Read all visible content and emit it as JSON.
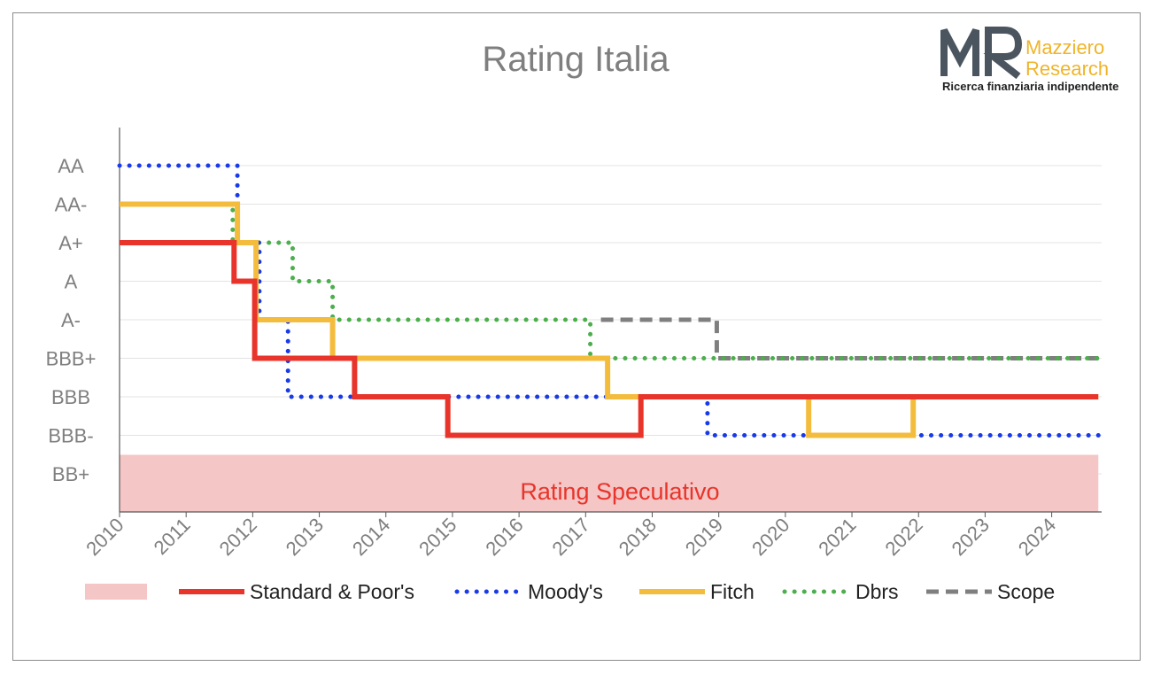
{
  "chart_data": {
    "type": "line",
    "title": "Rating Italia",
    "y_categories": [
      "BB+",
      "BBB-",
      "BBB",
      "BBB+",
      "A-",
      "A",
      "A+",
      "AA-",
      "AA"
    ],
    "x_tick_labels": [
      "2010",
      "2011",
      "2012",
      "2013",
      "2014",
      "2015",
      "2016",
      "2017",
      "2018",
      "2019",
      "2020",
      "2021",
      "2022",
      "2023",
      "2024"
    ],
    "xlim": [
      2010,
      2024.75
    ],
    "speculative_band": {
      "label": "Rating Speculativo",
      "color": "#f4c6c6",
      "label_color": "#e8342a"
    },
    "grid": true,
    "legend_position": "bottom",
    "series": [
      {
        "name": "Standard & Poor's",
        "color": "#e8342a",
        "style": "solid",
        "points": [
          [
            2010,
            "A+"
          ],
          [
            2011.72,
            "A"
          ],
          [
            2012.03,
            "BBB+"
          ],
          [
            2013.53,
            "BBB"
          ],
          [
            2014.93,
            "BBB-"
          ],
          [
            2017.83,
            "BBB"
          ],
          [
            2024.7,
            "BBB"
          ]
        ]
      },
      {
        "name": "Moody's",
        "color": "#1a3ae8",
        "style": "dotted",
        "points": [
          [
            2010,
            "AA"
          ],
          [
            2011.77,
            "A+"
          ],
          [
            2012.1,
            "A-"
          ],
          [
            2012.53,
            "BBB"
          ],
          [
            2018.83,
            "BBB-"
          ],
          [
            2024.7,
            "BBB-"
          ]
        ]
      },
      {
        "name": "Fitch",
        "color": "#f4bc3c",
        "style": "solid",
        "points": [
          [
            2010,
            "AA-"
          ],
          [
            2011.77,
            "A+"
          ],
          [
            2012.05,
            "A-"
          ],
          [
            2013.2,
            "BBB+"
          ],
          [
            2017.33,
            "BBB"
          ],
          [
            2020.35,
            "BBB-"
          ],
          [
            2021.92,
            "BBB"
          ],
          [
            2024.7,
            "BBB"
          ]
        ]
      },
      {
        "name": "Dbrs",
        "color": "#4cae4c",
        "style": "dotted",
        "points": [
          [
            2011.05,
            "AA-"
          ],
          [
            2011.7,
            "A+"
          ],
          [
            2012.6,
            "A"
          ],
          [
            2013.2,
            "A-"
          ],
          [
            2017.07,
            "BBB+"
          ],
          [
            2024.7,
            "BBB+"
          ]
        ]
      },
      {
        "name": "Scope",
        "color": "#7f7f7f",
        "style": "dashed",
        "points": [
          [
            2017.23,
            "A-"
          ],
          [
            2018.97,
            "BBB+"
          ],
          [
            2024.7,
            "BBB+"
          ]
        ]
      }
    ]
  },
  "logo": {
    "mark": "MR",
    "name_line1": "Mazziero",
    "name_line2": "Research",
    "tagline": "Ricerca finanziaria indipendente"
  },
  "colors": {
    "axis": "#595959",
    "grid": "#e3e3e3",
    "title": "#7f7f7f",
    "tick": "#7f7f7f",
    "legend_text": "#222222"
  }
}
